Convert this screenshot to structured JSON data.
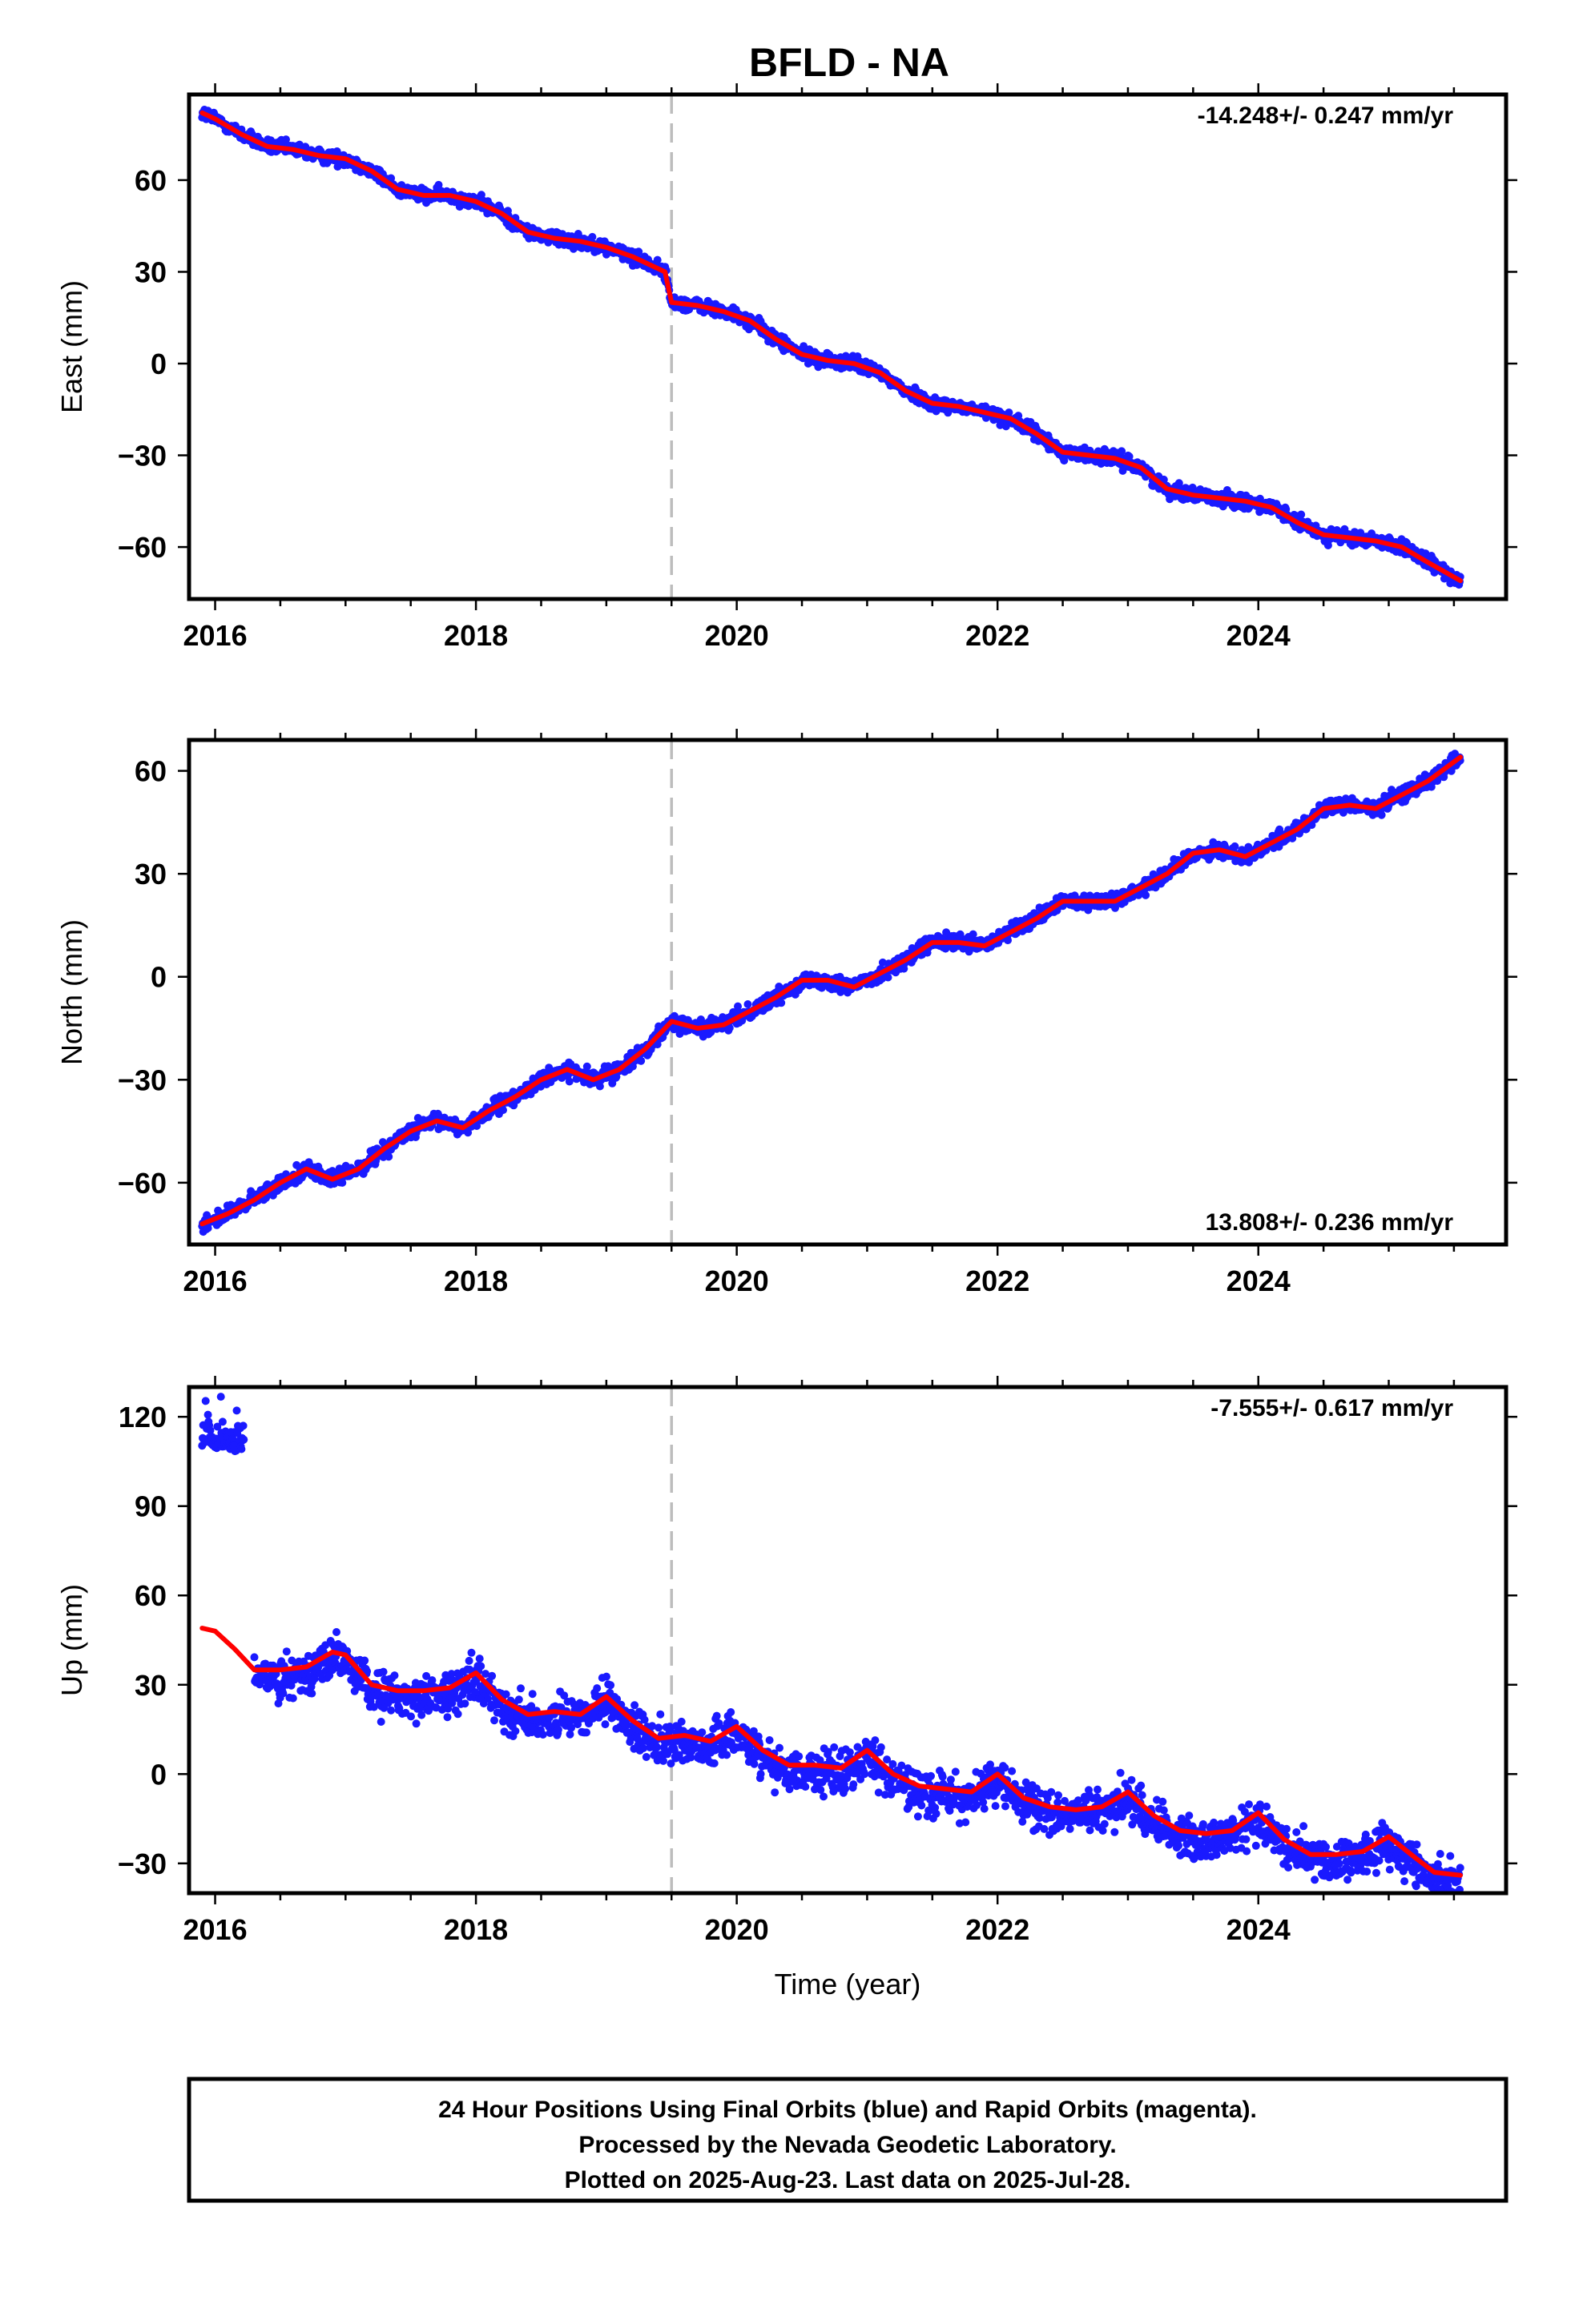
{
  "title": "BFLD - NA",
  "xlabel": "Time (year)",
  "footer_lines": [
    "24 Hour Positions Using Final Orbits (blue) and Rapid Orbits (magenta).",
    "Processed by the Nevada Geodetic Laboratory.",
    "Plotted on 2025-Aug-23. Last data on 2025-Jul-28."
  ],
  "colors": {
    "data_points": "#1a1aff",
    "model_line": "#ff0000",
    "event_line": "#bdbdbd",
    "frame": "#000000"
  },
  "chart_data": [
    {
      "type": "scatter",
      "ylabel": "East (mm)",
      "rate_label": "-14.248+/- 0.247 mm/yr",
      "rate_position": "top-right",
      "xlim": [
        2015.8,
        2025.9
      ],
      "ylim": [
        -77,
        88
      ],
      "x_ticks": [
        2016,
        2018,
        2020,
        2022,
        2024
      ],
      "x_tick_labels": [
        "2016",
        "2018",
        "2020",
        "2022",
        "2024"
      ],
      "y_ticks": [
        -60,
        -30,
        0,
        30,
        60
      ],
      "y_tick_labels": [
        "−60",
        "−30",
        "0",
        "30",
        "60"
      ],
      "event_x": 2019.5,
      "model_series": {
        "name": "",
        "x": [
          2015.9,
          2016.0,
          2016.2,
          2016.4,
          2016.6,
          2016.8,
          2017.0,
          2017.2,
          2017.4,
          2017.6,
          2017.8,
          2018.0,
          2018.2,
          2018.4,
          2018.6,
          2018.8,
          2019.0,
          2019.2,
          2019.45,
          2019.5,
          2019.7,
          2019.9,
          2020.1,
          2020.3,
          2020.5,
          2020.7,
          2020.9,
          2021.1,
          2021.3,
          2021.5,
          2021.7,
          2021.9,
          2022.1,
          2022.3,
          2022.5,
          2022.7,
          2022.9,
          2023.1,
          2023.3,
          2023.5,
          2023.7,
          2023.9,
          2024.1,
          2024.3,
          2024.5,
          2024.7,
          2024.9,
          2025.1,
          2025.3,
          2025.55
        ],
        "values": [
          82,
          80,
          75,
          71,
          70,
          68,
          67,
          63,
          57,
          55,
          55,
          53,
          49,
          43,
          41,
          40,
          38,
          35,
          30,
          20,
          19,
          17,
          14,
          8,
          3,
          1,
          0,
          -3,
          -9,
          -13,
          -14,
          -16,
          -18,
          -23,
          -29,
          -30,
          -31,
          -34,
          -41,
          -43,
          -44,
          -45,
          -47,
          -52,
          -56,
          -57,
          -58,
          -60,
          -65,
          -71
        ]
      }
    },
    {
      "type": "scatter",
      "ylabel": "North (mm)",
      "rate_label": "13.808+/- 0.236 mm/yr",
      "rate_position": "bottom-right",
      "xlim": [
        2015.8,
        2025.9
      ],
      "ylim": [
        -78,
        69
      ],
      "x_ticks": [
        2016,
        2018,
        2020,
        2022,
        2024
      ],
      "x_tick_labels": [
        "2016",
        "2018",
        "2020",
        "2022",
        "2024"
      ],
      "y_ticks": [
        -60,
        -30,
        0,
        30,
        60
      ],
      "y_tick_labels": [
        "−60",
        "−30",
        "0",
        "30",
        "60"
      ],
      "event_x": 2019.5,
      "model_series": {
        "name": "",
        "x": [
          2015.9,
          2016.1,
          2016.3,
          2016.5,
          2016.7,
          2016.9,
          2017.1,
          2017.3,
          2017.5,
          2017.7,
          2017.9,
          2018.1,
          2018.3,
          2018.5,
          2018.7,
          2018.9,
          2019.1,
          2019.3,
          2019.5,
          2019.7,
          2019.9,
          2020.1,
          2020.3,
          2020.5,
          2020.7,
          2020.9,
          2021.1,
          2021.3,
          2021.5,
          2021.7,
          2021.9,
          2022.1,
          2022.3,
          2022.5,
          2022.7,
          2022.9,
          2023.1,
          2023.3,
          2023.5,
          2023.7,
          2023.9,
          2024.1,
          2024.3,
          2024.5,
          2024.7,
          2024.9,
          2025.1,
          2025.3,
          2025.55
        ],
        "values": [
          -72,
          -69,
          -65,
          -60,
          -56,
          -59,
          -56,
          -50,
          -45,
          -42,
          -44,
          -39,
          -35,
          -30,
          -27,
          -30,
          -27,
          -21,
          -13,
          -15,
          -14,
          -10,
          -6,
          -1,
          -1,
          -3,
          1,
          5,
          10,
          10,
          9,
          13,
          17,
          22,
          22,
          22,
          26,
          30,
          36,
          37,
          35,
          39,
          43,
          49,
          50,
          49,
          53,
          57,
          64
        ]
      }
    },
    {
      "type": "scatter",
      "ylabel": "Up (mm)",
      "xlabel": "Time (year)",
      "rate_label": "-7.555+/- 0.617 mm/yr",
      "rate_position": "top-right",
      "xlim": [
        2015.8,
        2025.9
      ],
      "ylim": [
        -40,
        130
      ],
      "x_ticks": [
        2016,
        2018,
        2020,
        2022,
        2024
      ],
      "x_tick_labels": [
        "2016",
        "2018",
        "2020",
        "2022",
        "2024"
      ],
      "y_ticks": [
        -30,
        0,
        30,
        60,
        90,
        120
      ],
      "y_tick_labels": [
        "−30",
        "0",
        "30",
        "60",
        "90",
        "120"
      ],
      "event_x": 2019.5,
      "outlier_cluster": {
        "x_range": [
          2015.9,
          2016.2
        ],
        "y_center": 112,
        "y_spread": 8
      },
      "model_series": {
        "name": "",
        "x": [
          2015.9,
          2016.0,
          2016.15,
          2016.3,
          2016.5,
          2016.7,
          2016.9,
          2017.0,
          2017.2,
          2017.4,
          2017.6,
          2017.8,
          2018.0,
          2018.2,
          2018.4,
          2018.6,
          2018.8,
          2019.0,
          2019.2,
          2019.4,
          2019.6,
          2019.8,
          2020.0,
          2020.2,
          2020.4,
          2020.6,
          2020.8,
          2021.0,
          2021.2,
          2021.4,
          2021.6,
          2021.8,
          2022.0,
          2022.2,
          2022.4,
          2022.6,
          2022.8,
          2023.0,
          2023.2,
          2023.4,
          2023.6,
          2023.8,
          2024.0,
          2024.2,
          2024.4,
          2024.6,
          2024.8,
          2025.0,
          2025.2,
          2025.35,
          2025.55
        ],
        "values": [
          49,
          48,
          42,
          35,
          35,
          36,
          41,
          40,
          30,
          28,
          28,
          29,
          34,
          25,
          20,
          21,
          20,
          26,
          18,
          12,
          13,
          11,
          16,
          8,
          3,
          3,
          2,
          8,
          0,
          -4,
          -5,
          -6,
          0,
          -8,
          -11,
          -12,
          -11,
          -6,
          -14,
          -19,
          -20,
          -19,
          -13,
          -22,
          -27,
          -27,
          -26,
          -21,
          -28,
          -33,
          -34
        ]
      }
    }
  ]
}
